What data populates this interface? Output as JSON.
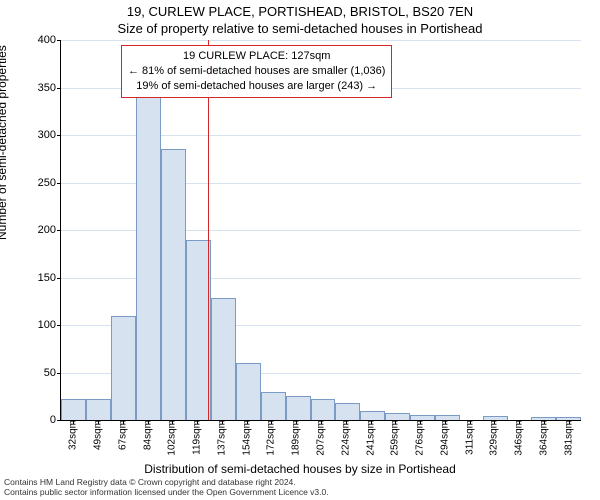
{
  "chart": {
    "type": "histogram",
    "title": "19, CURLEW PLACE, PORTISHEAD, BRISTOL, BS20 7EN",
    "subtitle": "Size of property relative to semi-detached houses in Portishead",
    "ylabel": "Number of semi-detached properties",
    "xlabel": "Distribution of semi-detached houses by size in Portishead",
    "title_fontsize": 13,
    "label_fontsize": 12,
    "tick_fontsize": 11,
    "background_color": "#ffffff",
    "grid_color": "#d6e2f0",
    "axis_color": "#000000",
    "bar_fill": "#d6e2f0",
    "bar_border": "#7a9bc4",
    "bar_border_width": 1,
    "ylim": [
      0,
      400
    ],
    "ytick_step": 50,
    "yticks": [
      0,
      50,
      100,
      150,
      200,
      250,
      300,
      350,
      400
    ],
    "xticks": [
      "32sqm",
      "49sqm",
      "67sqm",
      "84sqm",
      "102sqm",
      "119sqm",
      "137sqm",
      "154sqm",
      "172sqm",
      "189sqm",
      "207sqm",
      "224sqm",
      "241sqm",
      "259sqm",
      "276sqm",
      "294sqm",
      "311sqm",
      "329sqm",
      "346sqm",
      "364sqm",
      "381sqm"
    ],
    "values": [
      22,
      22,
      110,
      340,
      285,
      190,
      128,
      60,
      30,
      25,
      22,
      18,
      9,
      7,
      5,
      5,
      0,
      4,
      0,
      3,
      3
    ],
    "marker": {
      "value_sqm": 127,
      "color": "#d62728",
      "width": 1
    },
    "infobox": {
      "border_color": "#d62728",
      "lines": [
        "19 CURLEW PLACE: 127sqm",
        "← 81% of semi-detached houses are smaller (1,036)",
        "19% of semi-detached houses are larger (243) →"
      ]
    }
  },
  "footer": {
    "line1": "Contains HM Land Registry data © Crown copyright and database right 2024.",
    "line2": "Contains public sector information licensed under the Open Government Licence v3.0."
  }
}
